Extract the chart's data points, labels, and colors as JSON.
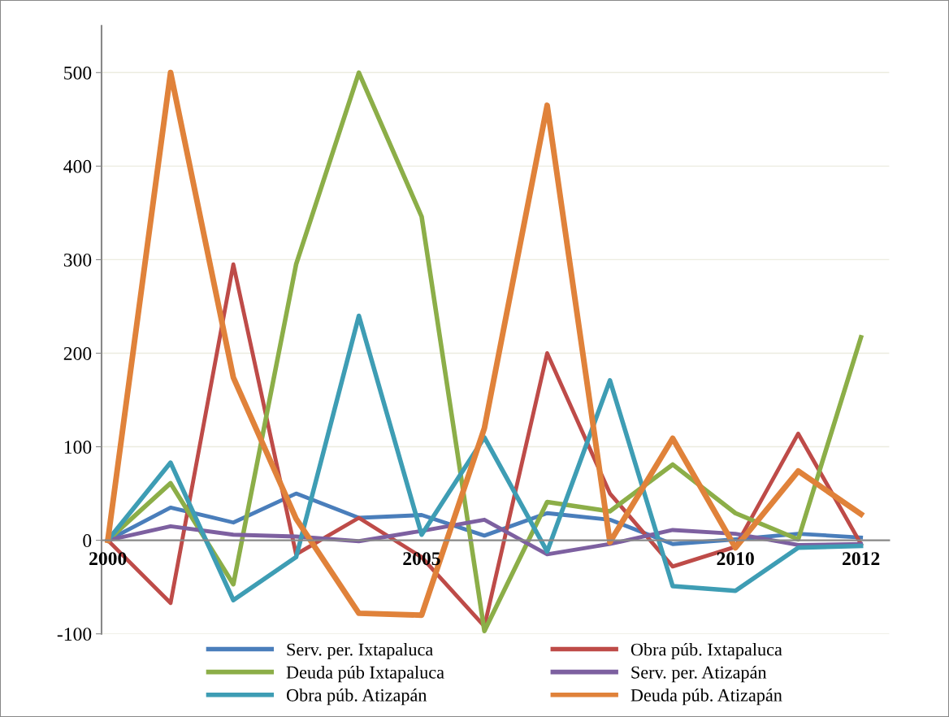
{
  "chart_data": {
    "type": "line",
    "categories": [
      "2000",
      null,
      null,
      null,
      null,
      "2005",
      null,
      null,
      null,
      null,
      "2010",
      null,
      "2012"
    ],
    "ylim": [
      -100,
      550
    ],
    "yticks": [
      -100,
      0,
      100,
      200,
      300,
      400,
      500
    ],
    "grid": "y",
    "legend": "bottom",
    "marker": "none",
    "line_style": "solid",
    "series": [
      {
        "name": "Serv. per. Ixtapaluca",
        "color": "#4a7ebb",
        "values": [
          0,
          35,
          19,
          50,
          24,
          27,
          5,
          29,
          22,
          -4,
          1,
          7,
          3
        ]
      },
      {
        "name": "Obra púb. Ixtapaluca",
        "color": "#be4b48",
        "values": [
          0,
          -67,
          295,
          -15,
          24,
          -18,
          -92,
          200,
          50,
          -28,
          -7,
          114,
          -4
        ]
      },
      {
        "name": "Deuda púb Ixtapaluca",
        "color": "#8cae48",
        "values": [
          0,
          61,
          -47,
          295,
          500,
          346,
          -97,
          41,
          31,
          81,
          29,
          1,
          217
        ]
      },
      {
        "name": "Serv. per. Atizapán",
        "color": "#7d60a0",
        "values": [
          0,
          15,
          6,
          4,
          -1,
          10,
          22,
          -15,
          -4,
          11,
          7,
          -5,
          -4
        ]
      },
      {
        "name": "Obra púb. Atizapán",
        "color": "#3e9db4",
        "values": [
          0,
          83,
          -64,
          -18,
          240,
          6,
          110,
          -12,
          171,
          -49,
          -54,
          -8,
          -6
        ]
      },
      {
        "name": "Deuda púb. Atizapán",
        "color": "#e0823a",
        "values": [
          0,
          500,
          174,
          23,
          -78,
          -80,
          120,
          465,
          -2,
          109,
          -8,
          74,
          28
        ]
      }
    ]
  }
}
